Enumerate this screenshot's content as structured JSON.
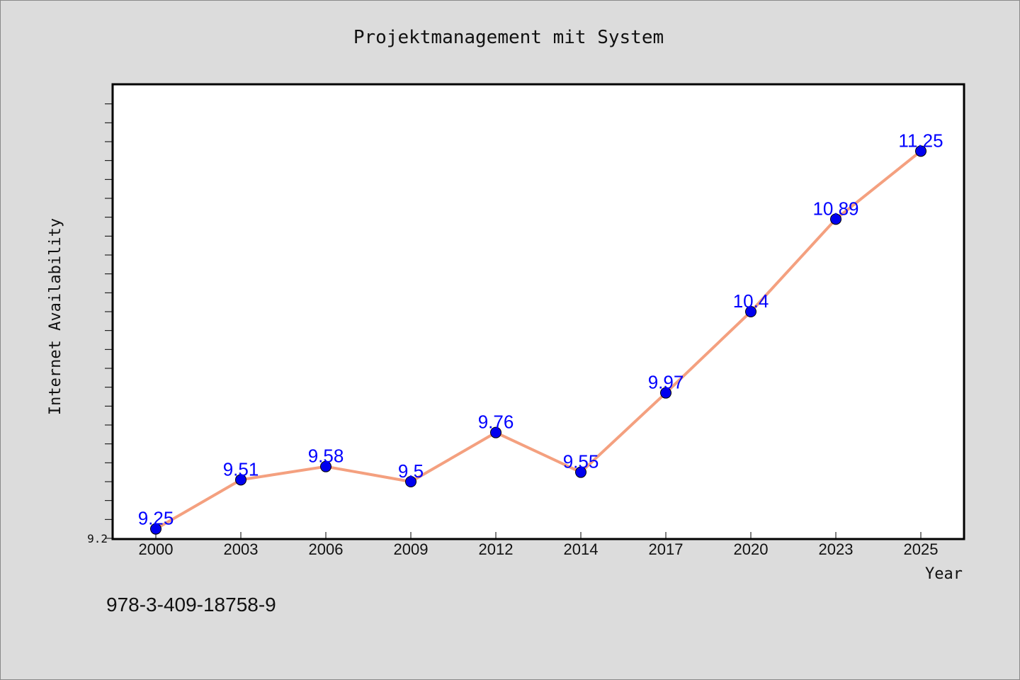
{
  "caption": "978-3-409-18758-9",
  "chart_data": {
    "type": "line",
    "title": "Projektmanagement mit System",
    "xlabel": "Year",
    "ylabel": "Internet Availability",
    "categories": [
      "2000",
      "2003",
      "2006",
      "2009",
      "2012",
      "2014",
      "2017",
      "2020",
      "2023",
      "2025"
    ],
    "series": [
      {
        "values": [
          9.25,
          9.51,
          9.58,
          9.5,
          9.76,
          9.55,
          9.97,
          10.4,
          10.89,
          11.25
        ],
        "line_color": "#f4a07f",
        "marker_color": "#0000ee"
      }
    ],
    "data_labels": [
      "9.25",
      "9.51",
      "9.58",
      "9.5",
      "9.76",
      "9.55",
      "9.97",
      "10.4",
      "10.89",
      "11.25"
    ],
    "ylim": [
      9.2,
      11.6
    ],
    "y_tick_label": "9.2",
    "grid": false,
    "background_color": "#ffffff",
    "label_color": "#0000ff"
  }
}
